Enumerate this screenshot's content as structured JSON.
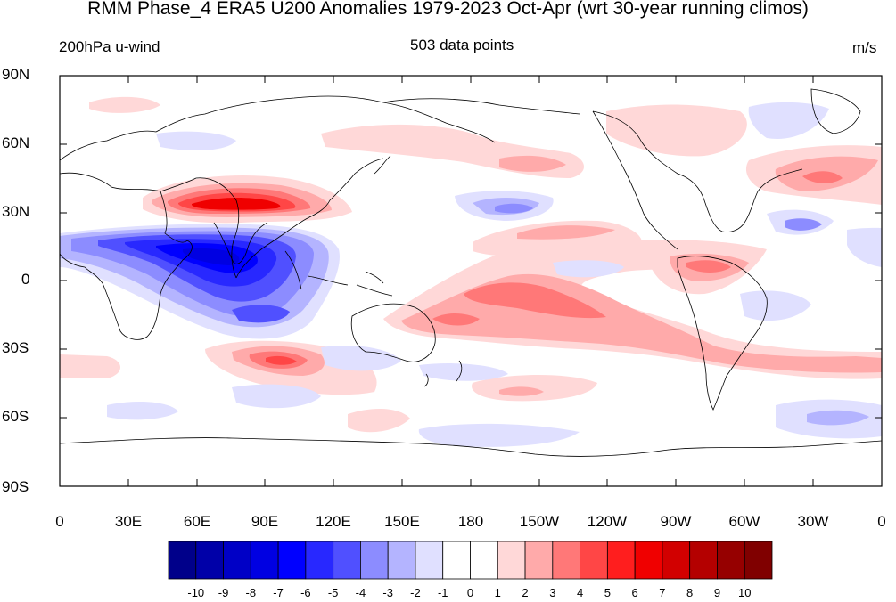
{
  "title": "RMM Phase_4 ERA5 U200 Anomalies 1979-2023 Oct-Apr (wrt 30-year running climos)",
  "left_label": "200hPa u-wind",
  "center_label": "503 data points",
  "right_label": "m/s",
  "lat_labels": [
    "90N",
    "60N",
    "30N",
    "0",
    "30S",
    "60S",
    "90S"
  ],
  "lon_labels": [
    "0",
    "30E",
    "60E",
    "90E",
    "120E",
    "150E",
    "180",
    "150W",
    "120W",
    "90W",
    "60W",
    "30W",
    "0"
  ],
  "colorbar": {
    "labels": [
      "-10",
      "-9",
      "-8",
      "-7",
      "-6",
      "-5",
      "-4",
      "-3",
      "-2",
      "-1",
      "0",
      "1",
      "2",
      "3",
      "4",
      "5",
      "6",
      "7",
      "8",
      "9",
      "10"
    ],
    "colors": [
      "#00008a",
      "#0000a8",
      "#0000c6",
      "#0000e2",
      "#0000ff",
      "#2828ff",
      "#5050ff",
      "#8c8cff",
      "#b4b4ff",
      "#e0e0ff",
      "#ffffff",
      "#ffffff",
      "#ffd8d8",
      "#ffaaaa",
      "#ff7878",
      "#ff4646",
      "#ff1e1e",
      "#f00000",
      "#d20000",
      "#b40000",
      "#960000",
      "#800000"
    ]
  },
  "map_data": {
    "field": "200hPa u-wind anomaly",
    "units": "m/s",
    "projection": "cylindrical equidistant",
    "lon_range": [
      0,
      360
    ],
    "lat_range": [
      -90,
      90
    ],
    "features": [
      {
        "name": "subtropical-jet-positive-asia",
        "lon": 75,
        "lat": 32,
        "value": 8
      },
      {
        "name": "indian-ocean-negative-anomaly",
        "lon": 70,
        "lat": 8,
        "value": -6
      },
      {
        "name": "central-pacific-positive-band",
        "lon": 195,
        "lat": -10,
        "value": 4
      },
      {
        "name": "south-indian-ocean-positive",
        "lon": 85,
        "lat": -35,
        "value": 5
      },
      {
        "name": "north-atlantic-positive",
        "lon": 325,
        "lat": 42,
        "value": 4
      },
      {
        "name": "south-atlantic-positive",
        "lon": 340,
        "lat": -35,
        "value": 4
      }
    ]
  }
}
